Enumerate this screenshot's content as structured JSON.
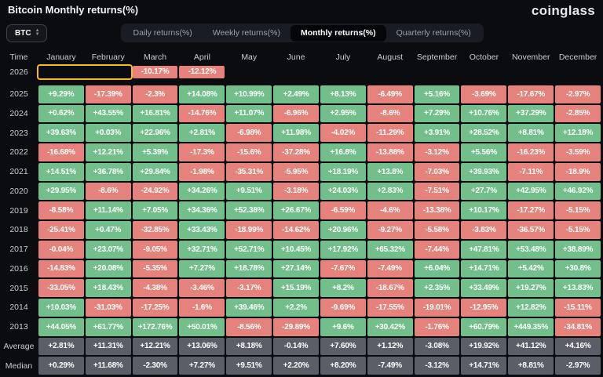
{
  "header": {
    "title": "Bitcoin Monthly returns(%)",
    "logo": "coinglass"
  },
  "toolbar": {
    "symbol_select": {
      "value": "BTC"
    },
    "tabs": [
      {
        "label": "Daily returns(%)",
        "active": false
      },
      {
        "label": "Weekly returns(%)",
        "active": false
      },
      {
        "label": "Monthly returns(%)",
        "active": true
      },
      {
        "label": "Quarterly returns(%)",
        "active": false
      }
    ]
  },
  "chart_data": {
    "type": "heatmap",
    "title": "Bitcoin Monthly returns(%)",
    "columns": [
      "Time",
      "January",
      "February",
      "March",
      "April",
      "May",
      "June",
      "July",
      "August",
      "September",
      "October",
      "November",
      "December"
    ],
    "rows": [
      {
        "label": "2026",
        "highlight": true,
        "values": [
          "-10.17%",
          "-12.12%",
          "",
          "",
          "",
          "",
          "",
          "",
          "",
          "",
          "",
          ""
        ]
      },
      {
        "label": "2025",
        "values": [
          "+9.29%",
          "-17.39%",
          "-2.3%",
          "+14.08%",
          "+10.99%",
          "+2.49%",
          "+8.13%",
          "-6.49%",
          "+5.16%",
          "-3.69%",
          "-17.67%",
          "-2.97%"
        ]
      },
      {
        "label": "2024",
        "values": [
          "+0.62%",
          "+43.55%",
          "+16.81%",
          "-14.76%",
          "+11.07%",
          "-6.96%",
          "+2.95%",
          "-8.6%",
          "+7.29%",
          "+10.76%",
          "+37.29%",
          "-2.85%"
        ]
      },
      {
        "label": "2023",
        "values": [
          "+39.63%",
          "+0.03%",
          "+22.96%",
          "+2.81%",
          "-6.98%",
          "+11.98%",
          "-4.02%",
          "-11.29%",
          "+3.91%",
          "+28.52%",
          "+8.81%",
          "+12.18%"
        ]
      },
      {
        "label": "2022",
        "values": [
          "-16.68%",
          "+12.21%",
          "+5.39%",
          "-17.3%",
          "-15.6%",
          "-37.28%",
          "+16.8%",
          "-13.88%",
          "-3.12%",
          "+5.56%",
          "-16.23%",
          "-3.59%"
        ]
      },
      {
        "label": "2021",
        "values": [
          "+14.51%",
          "+36.78%",
          "+29.84%",
          "-1.98%",
          "-35.31%",
          "-5.95%",
          "+18.19%",
          "+13.8%",
          "-7.03%",
          "+39.93%",
          "-7.11%",
          "-18.9%"
        ]
      },
      {
        "label": "2020",
        "values": [
          "+29.95%",
          "-8.6%",
          "-24.92%",
          "+34.26%",
          "+9.51%",
          "-3.18%",
          "+24.03%",
          "+2.83%",
          "-7.51%",
          "+27.7%",
          "+42.95%",
          "+46.92%"
        ]
      },
      {
        "label": "2019",
        "values": [
          "-8.58%",
          "+11.14%",
          "+7.05%",
          "+34.36%",
          "+52.38%",
          "+26.67%",
          "-6.59%",
          "-4.6%",
          "-13.38%",
          "+10.17%",
          "-17.27%",
          "-5.15%"
        ]
      },
      {
        "label": "2018",
        "values": [
          "-25.41%",
          "+0.47%",
          "-32.85%",
          "+33.43%",
          "-18.99%",
          "-14.62%",
          "+20.96%",
          "-9.27%",
          "-5.58%",
          "-3.83%",
          "-36.57%",
          "-5.15%"
        ]
      },
      {
        "label": "2017",
        "values": [
          "-0.04%",
          "+23.07%",
          "-9.05%",
          "+32.71%",
          "+52.71%",
          "+10.45%",
          "+17.92%",
          "+65.32%",
          "-7.44%",
          "+47.81%",
          "+53.48%",
          "+38.89%"
        ]
      },
      {
        "label": "2016",
        "values": [
          "-14.83%",
          "+20.08%",
          "-5.35%",
          "+7.27%",
          "+18.78%",
          "+27.14%",
          "-7.67%",
          "-7.49%",
          "+6.04%",
          "+14.71%",
          "+5.42%",
          "+30.8%"
        ]
      },
      {
        "label": "2015",
        "values": [
          "-33.05%",
          "+18.43%",
          "-4.38%",
          "-3.46%",
          "-3.17%",
          "+15.19%",
          "+8.2%",
          "-18.67%",
          "+2.35%",
          "+33.49%",
          "+19.27%",
          "+13.83%"
        ]
      },
      {
        "label": "2014",
        "values": [
          "+10.03%",
          "-31.03%",
          "-17.25%",
          "-1.6%",
          "+39.46%",
          "+2.2%",
          "-9.69%",
          "-17.55%",
          "-19.01%",
          "-12.95%",
          "+12.82%",
          "-15.11%"
        ]
      },
      {
        "label": "2013",
        "values": [
          "+44.05%",
          "+61.77%",
          "+172.76%",
          "+50.01%",
          "-8.56%",
          "-29.89%",
          "+9.6%",
          "+30.42%",
          "-1.76%",
          "+60.79%",
          "+449.35%",
          "-34.81%"
        ]
      },
      {
        "label": "Average",
        "neutral": true,
        "values": [
          "+2.81%",
          "+11.31%",
          "+12.21%",
          "+13.06%",
          "+8.18%",
          "-0.14%",
          "+7.60%",
          "+1.12%",
          "-3.08%",
          "+19.92%",
          "+41.12%",
          "+4.16%"
        ]
      },
      {
        "label": "Median",
        "neutral": true,
        "values": [
          "+0.29%",
          "+11.68%",
          "-2.30%",
          "+7.27%",
          "+9.51%",
          "+2.20%",
          "+8.20%",
          "-7.49%",
          "-3.12%",
          "+14.71%",
          "+8.81%",
          "-2.97%"
        ]
      }
    ],
    "highlight": {
      "row": "2026",
      "columns": [
        "January",
        "February"
      ]
    },
    "colors": {
      "positive": "#73bf8c",
      "negative": "#e5827b",
      "neutral": "#5a5e66",
      "highlight": "#f8bd0d",
      "background": "#0b0c10"
    },
    "legend_position": "none",
    "grid": false
  }
}
